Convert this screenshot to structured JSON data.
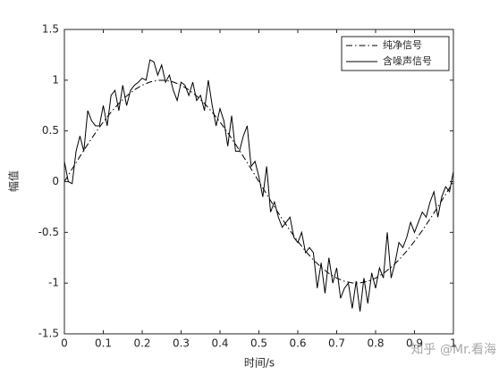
{
  "chart_data": {
    "type": "line",
    "x_label": "时间/s",
    "y_label": "幅值",
    "watermark": "知乎 @Mr.看海",
    "xlim": [
      0,
      1
    ],
    "ylim": [
      -1.5,
      1.5
    ],
    "xticks": [
      0,
      0.1,
      0.2,
      0.3,
      0.4,
      0.5,
      0.6,
      0.7,
      0.8,
      0.9,
      1
    ],
    "yticks": [
      -1.5,
      -1,
      -0.5,
      0,
      0.5,
      1,
      1.5
    ],
    "grid": false,
    "legend": "upper right",
    "series": [
      {
        "name": "纯净信号",
        "color": "#000000",
        "dash": "dashdot",
        "x": [
          0,
          0.02,
          0.04,
          0.06,
          0.08,
          0.1,
          0.12,
          0.14,
          0.16,
          0.18,
          0.2,
          0.22,
          0.24,
          0.26,
          0.28,
          0.3,
          0.32,
          0.34,
          0.36,
          0.38,
          0.4,
          0.42,
          0.44,
          0.46,
          0.48,
          0.5,
          0.52,
          0.54,
          0.56,
          0.58,
          0.6,
          0.62,
          0.64,
          0.66,
          0.68,
          0.7,
          0.72,
          0.74,
          0.76,
          0.78,
          0.8,
          0.82,
          0.84,
          0.86,
          0.88,
          0.9,
          0.92,
          0.94,
          0.96,
          0.98,
          1
        ],
        "values": [
          0,
          0.125,
          0.249,
          0.368,
          0.482,
          0.588,
          0.685,
          0.771,
          0.844,
          0.905,
          0.951,
          0.982,
          0.998,
          0.998,
          0.982,
          0.951,
          0.905,
          0.844,
          0.771,
          0.685,
          0.588,
          0.482,
          0.368,
          0.249,
          0.125,
          0,
          -0.125,
          -0.249,
          -0.368,
          -0.482,
          -0.588,
          -0.685,
          -0.771,
          -0.844,
          -0.905,
          -0.951,
          -0.982,
          -0.998,
          -0.998,
          -0.982,
          -0.951,
          -0.905,
          -0.844,
          -0.771,
          -0.685,
          -0.588,
          -0.482,
          -0.368,
          -0.249,
          -0.125,
          0
        ]
      },
      {
        "name": "含噪声信号",
        "color": "#000000",
        "dash": "solid",
        "x": [
          0,
          0.01,
          0.02,
          0.03,
          0.04,
          0.05,
          0.06,
          0.07,
          0.08,
          0.09,
          0.1,
          0.11,
          0.12,
          0.13,
          0.14,
          0.15,
          0.16,
          0.17,
          0.18,
          0.19,
          0.2,
          0.21,
          0.22,
          0.23,
          0.24,
          0.25,
          0.26,
          0.27,
          0.28,
          0.29,
          0.3,
          0.31,
          0.32,
          0.33,
          0.34,
          0.35,
          0.36,
          0.37,
          0.38,
          0.39,
          0.4,
          0.41,
          0.42,
          0.43,
          0.44,
          0.45,
          0.46,
          0.47,
          0.48,
          0.49,
          0.5,
          0.51,
          0.52,
          0.53,
          0.54,
          0.55,
          0.56,
          0.57,
          0.58,
          0.59,
          0.6,
          0.61,
          0.62,
          0.63,
          0.64,
          0.65,
          0.66,
          0.67,
          0.68,
          0.69,
          0.7,
          0.71,
          0.72,
          0.73,
          0.74,
          0.75,
          0.76,
          0.77,
          0.78,
          0.79,
          0.8,
          0.81,
          0.82,
          0.83,
          0.84,
          0.85,
          0.86,
          0.87,
          0.88,
          0.89,
          0.9,
          0.91,
          0.92,
          0.93,
          0.94,
          0.95,
          0.96,
          0.97,
          0.98,
          0.99,
          1
        ],
        "values": [
          0.2,
          0,
          -0.02,
          0.3,
          0.45,
          0.3,
          0.7,
          0.6,
          0.55,
          0.55,
          0.75,
          0.55,
          0.85,
          0.9,
          0.7,
          0.95,
          0.75,
          0.9,
          0.95,
          0.98,
          1.02,
          1,
          1.2,
          1.18,
          1.05,
          1.15,
          0.98,
          1.05,
          0.9,
          0.8,
          0.98,
          0.95,
          0.85,
          0.98,
          0.8,
          0.85,
          0.7,
          1,
          0.75,
          0.55,
          0.72,
          0.6,
          0.35,
          0.65,
          0.3,
          0.3,
          0.45,
          0.55,
          0.15,
          0.2,
          0.05,
          -0.15,
          0.15,
          -0.3,
          -0.2,
          -0.35,
          -0.45,
          -0.4,
          -0.35,
          -0.55,
          -0.6,
          -0.5,
          -0.7,
          -0.65,
          -0.7,
          -1.05,
          -0.8,
          -1.1,
          -0.75,
          -1,
          -0.85,
          -1.15,
          -1.05,
          -1,
          -1.25,
          -0.98,
          -1.28,
          -0.95,
          -1.2,
          -0.9,
          -1.05,
          -0.85,
          -0.95,
          -0.5,
          -0.95,
          -0.8,
          -0.6,
          -0.65,
          -0.55,
          -0.4,
          -0.5,
          -0.4,
          -0.3,
          -0.35,
          -0.2,
          -0.1,
          -0.35,
          -0.15,
          -0.05,
          -0.1,
          0.1
        ]
      }
    ]
  }
}
